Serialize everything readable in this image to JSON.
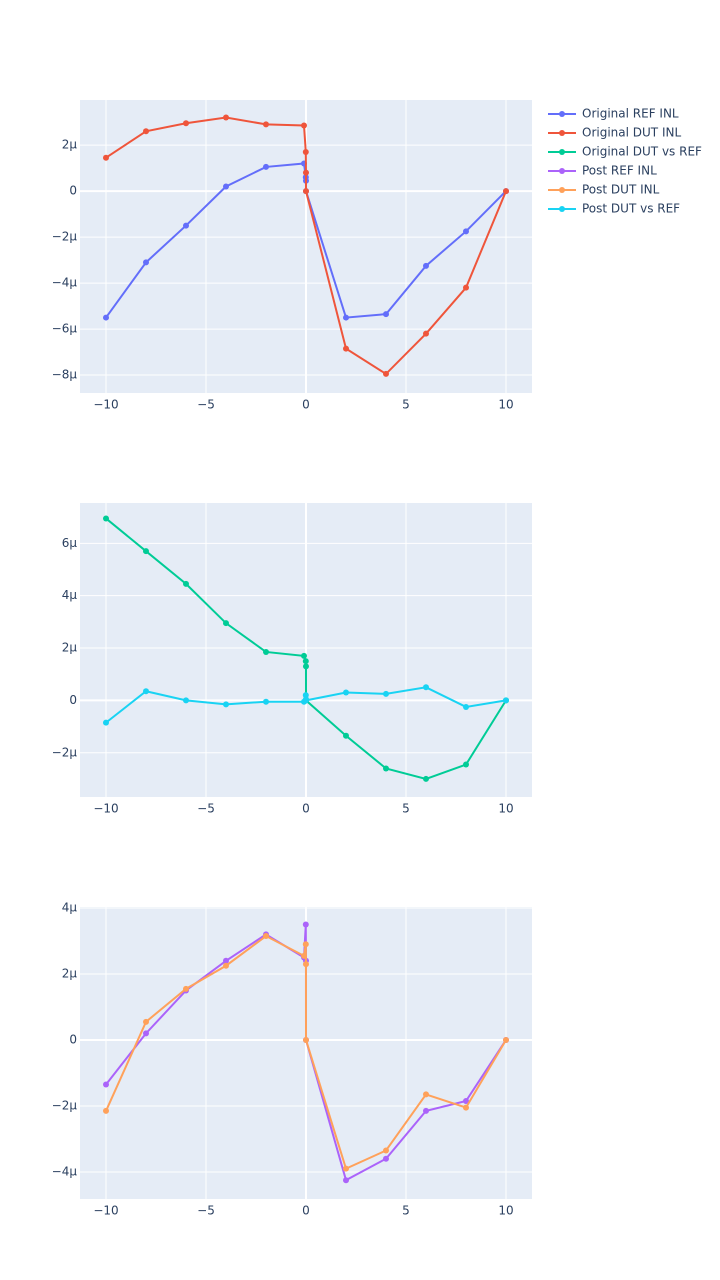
{
  "chart_data": [
    {
      "type": "line",
      "x": [
        -10,
        -8,
        -6,
        -4,
        -2,
        -0.1,
        -0.01,
        -0.001,
        0,
        2,
        4,
        6,
        8,
        10
      ],
      "series": [
        {
          "name": "Original REF INL",
          "color": "#636efa",
          "values": [
            -5.5e-06,
            -3.1e-06,
            -1.5e-06,
            2e-07,
            1.05e-06,
            1.2e-06,
            6e-07,
            4.5e-07,
            0,
            -5.5e-06,
            -5.35e-06,
            -3.25e-06,
            -1.75e-06,
            0
          ]
        },
        {
          "name": "Original DUT INL",
          "color": "#EF553B",
          "values": [
            1.45e-06,
            2.6e-06,
            2.95e-06,
            3.2e-06,
            2.9e-06,
            2.85e-06,
            1.7e-06,
            8e-07,
            0,
            -6.85e-06,
            -7.95e-06,
            -6.2e-06,
            -4.2e-06,
            0
          ]
        }
      ],
      "xlim": [
        -11.3,
        11.3
      ],
      "ylim": [
        -8.78e-06,
        3.96e-06
      ],
      "xticks": [
        {
          "value": -10,
          "label": "−10"
        },
        {
          "value": -5,
          "label": "−5"
        },
        0,
        5,
        10
      ],
      "yticks": [
        {
          "value": -8e-06,
          "label": "−8µ"
        },
        {
          "value": -6e-06,
          "label": "−6µ"
        },
        {
          "value": -4e-06,
          "label": "−4µ"
        },
        {
          "value": -2e-06,
          "label": "−2µ"
        },
        0,
        {
          "value": 2e-06,
          "label": "2µ"
        }
      ],
      "grid": true
    },
    {
      "type": "line",
      "x": [
        -10,
        -8,
        -6,
        -4,
        -2,
        -0.1,
        -0.01,
        -0.001,
        0,
        2,
        4,
        6,
        8,
        10
      ],
      "series": [
        {
          "name": "Original DUT vs REF",
          "color": "#00cc96",
          "values": [
            6.95e-06,
            5.7e-06,
            4.45e-06,
            2.95e-06,
            1.85e-06,
            1.7e-06,
            1.5e-06,
            1.3e-06,
            0,
            -1.35e-06,
            -2.6e-06,
            -3e-06,
            -2.45e-06,
            0
          ]
        },
        {
          "name": "Post DUT vs REF",
          "color": "#19d3f3",
          "values": [
            -8.5e-07,
            3.5e-07,
            0,
            -1.5e-07,
            -5e-08,
            -5e-08,
            2e-07,
            5e-08,
            0,
            3e-07,
            2.5e-07,
            5e-07,
            -2.5e-07,
            0
          ]
        }
      ],
      "xlim": [
        -11.3,
        11.3
      ],
      "ylim": [
        -3.69e-06,
        7.54e-06
      ],
      "xticks": [
        {
          "value": -10,
          "label": "−10"
        },
        {
          "value": -5,
          "label": "−5"
        },
        0,
        5,
        10
      ],
      "yticks": [
        {
          "value": -2e-06,
          "label": "−2µ"
        },
        0,
        {
          "value": 2e-06,
          "label": "2µ"
        },
        {
          "value": 4e-06,
          "label": "4µ"
        },
        {
          "value": 6e-06,
          "label": "6µ"
        }
      ],
      "grid": true
    },
    {
      "type": "line",
      "x": [
        -10,
        -8,
        -6,
        -4,
        -2,
        -0.1,
        -0.01,
        -0.001,
        0,
        2,
        4,
        6,
        8,
        10
      ],
      "series": [
        {
          "name": "Post REF INL",
          "color": "#ab63fa",
          "values": [
            -1.35e-06,
            2e-07,
            1.5e-06,
            2.4e-06,
            3.2e-06,
            2.5e-06,
            3.5e-06,
            2.4e-06,
            0,
            -4.25e-06,
            -3.6e-06,
            -2.15e-06,
            -1.85e-06,
            0
          ]
        },
        {
          "name": "Post DUT INL",
          "color": "#FFA15A",
          "values": [
            -2.15e-06,
            5.5e-07,
            1.55e-06,
            2.25e-06,
            3.15e-06,
            2.55e-06,
            2.9e-06,
            2.3e-06,
            0,
            -3.9e-06,
            -3.35e-06,
            -1.65e-06,
            -2.05e-06,
            0
          ]
        }
      ],
      "xlim": [
        -11.3,
        11.3
      ],
      "ylim": [
        -4.82e-06,
        4.03e-06
      ],
      "xticks": [
        {
          "value": -10,
          "label": "−10"
        },
        {
          "value": -5,
          "label": "−5"
        },
        0,
        5,
        10
      ],
      "yticks": [
        {
          "value": -4e-06,
          "label": "−4µ"
        },
        {
          "value": -2e-06,
          "label": "−2µ"
        },
        0,
        {
          "value": 2e-06,
          "label": "2µ"
        },
        {
          "value": 4e-06,
          "label": "4µ"
        }
      ],
      "grid": true
    }
  ]
}
